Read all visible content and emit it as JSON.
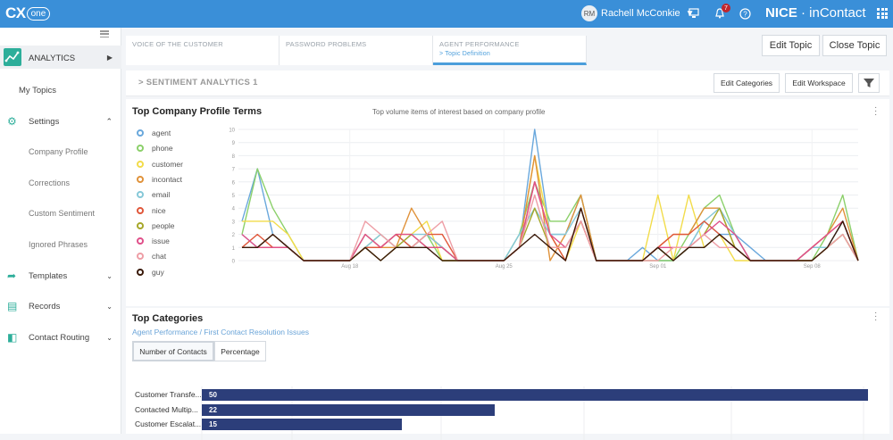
{
  "app": {
    "logo_text": "CX",
    "logo_suffix": "one",
    "brand_bold": "NICE",
    "brand_thin": " · inContact"
  },
  "user": {
    "initials": "RM",
    "name": "Rachell McConkie",
    "notifications": "7"
  },
  "sidebar": {
    "items": [
      {
        "label": "ANALYTICS"
      },
      {
        "label": "My Topics"
      },
      {
        "label": "Settings"
      },
      {
        "label": "Company Profile"
      },
      {
        "label": "Corrections"
      },
      {
        "label": "Custom Sentiment"
      },
      {
        "label": "Ignored Phrases"
      },
      {
        "label": "Templates"
      },
      {
        "label": "Records"
      },
      {
        "label": "Contact Routing"
      }
    ]
  },
  "tabs": [
    {
      "label": "VOICE OF THE CUSTOMER",
      "sub": ""
    },
    {
      "label": "PASSWORD PROBLEMS",
      "sub": ""
    },
    {
      "label": "AGENT PERFORMANCE",
      "sub": "> Topic Definition"
    }
  ],
  "actions": {
    "edit_topic": "Edit Topic",
    "close_topic": "Close Topic",
    "edit_categories": "Edit Categories",
    "edit_workspace": "Edit Workspace"
  },
  "section": {
    "title": "> SENTIMENT ANALYTICS 1"
  },
  "profile_card": {
    "title": "Top Company Profile Terms",
    "subtitle": "Top volume items of interest based on company profile"
  },
  "chart_data": {
    "type": "line",
    "x_tick_labels": [
      "Aug 18",
      "Aug 25",
      "Sep 01",
      "Sep 08"
    ],
    "x_tick_index": [
      7,
      17,
      27,
      37
    ],
    "ylim": [
      0,
      10
    ],
    "y_ticks": [
      0,
      1,
      2,
      3,
      4,
      5,
      6,
      7,
      8,
      9,
      10
    ],
    "grid": true,
    "legend_placement": "left",
    "series": [
      {
        "name": "agent",
        "color": "#6aa8dc",
        "values": [
          3,
          7,
          2,
          1,
          0,
          0,
          0,
          0,
          2,
          1,
          2,
          1,
          2,
          1,
          0,
          0,
          0,
          0,
          1,
          10,
          2,
          2,
          5,
          0,
          0,
          0,
          1,
          0,
          0,
          1,
          3,
          2,
          2,
          1,
          0,
          0,
          0,
          1,
          1,
          3,
          0
        ]
      },
      {
        "name": "phone",
        "color": "#8bd06a",
        "values": [
          2,
          7,
          4,
          2,
          0,
          0,
          0,
          0,
          1,
          2,
          1,
          1,
          2,
          0,
          0,
          0,
          0,
          0,
          2,
          6,
          3,
          3,
          5,
          0,
          0,
          0,
          0,
          0,
          0,
          2,
          4,
          5,
          2,
          0,
          0,
          0,
          0,
          0,
          2,
          5,
          0
        ]
      },
      {
        "name": "customer",
        "color": "#f2dc4a",
        "values": [
          3,
          3,
          3,
          2,
          0,
          0,
          0,
          0,
          2,
          1,
          2,
          2,
          3,
          0,
          0,
          0,
          0,
          0,
          1,
          8,
          2,
          0,
          3,
          0,
          0,
          0,
          0,
          5,
          0,
          5,
          1,
          2,
          0,
          0,
          0,
          0,
          0,
          0,
          1,
          2,
          0
        ]
      },
      {
        "name": "incontact",
        "color": "#e0923a",
        "values": [
          1,
          1,
          1,
          1,
          0,
          0,
          0,
          0,
          1,
          1,
          1,
          4,
          2,
          1,
          0,
          0,
          0,
          0,
          1,
          8,
          0,
          2,
          5,
          0,
          0,
          0,
          0,
          1,
          2,
          2,
          4,
          4,
          1,
          0,
          0,
          0,
          0,
          1,
          2,
          4,
          0
        ]
      },
      {
        "name": "email",
        "color": "#86c8d8",
        "values": [
          2,
          1,
          2,
          1,
          0,
          0,
          0,
          0,
          1,
          2,
          1,
          2,
          2,
          1,
          0,
          0,
          0,
          0,
          2,
          4,
          2,
          2,
          4,
          0,
          0,
          0,
          0,
          1,
          0,
          1,
          3,
          4,
          2,
          0,
          0,
          0,
          0,
          1,
          1,
          2,
          0
        ]
      },
      {
        "name": "nice",
        "color": "#e0573a",
        "values": [
          1,
          2,
          1,
          1,
          0,
          0,
          0,
          0,
          1,
          1,
          2,
          1,
          2,
          2,
          0,
          0,
          0,
          0,
          1,
          6,
          2,
          0,
          4,
          0,
          0,
          0,
          0,
          1,
          2,
          2,
          3,
          2,
          1,
          0,
          0,
          0,
          0,
          1,
          2,
          3,
          0
        ]
      },
      {
        "name": "people",
        "color": "#a7a82a",
        "values": [
          1,
          1,
          2,
          1,
          0,
          0,
          0,
          0,
          1,
          0,
          1,
          2,
          1,
          1,
          0,
          0,
          0,
          0,
          1,
          4,
          1,
          1,
          3,
          0,
          0,
          0,
          0,
          1,
          0,
          1,
          2,
          4,
          1,
          0,
          0,
          0,
          0,
          0,
          1,
          2,
          0
        ]
      },
      {
        "name": "issue",
        "color": "#e0508a",
        "values": [
          2,
          1,
          1,
          1,
          0,
          0,
          0,
          0,
          2,
          1,
          2,
          2,
          1,
          1,
          0,
          0,
          0,
          0,
          1,
          6,
          2,
          1,
          3,
          0,
          0,
          0,
          0,
          1,
          1,
          1,
          2,
          3,
          2,
          0,
          0,
          0,
          0,
          1,
          2,
          3,
          0
        ]
      },
      {
        "name": "chat",
        "color": "#ee9ea6",
        "values": [
          1,
          1,
          2,
          1,
          0,
          0,
          0,
          0,
          3,
          2,
          1,
          1,
          2,
          3,
          0,
          0,
          0,
          0,
          1,
          5,
          1,
          1,
          3,
          0,
          0,
          0,
          0,
          0,
          1,
          1,
          2,
          1,
          1,
          0,
          0,
          0,
          0,
          0,
          1,
          2,
          0
        ]
      },
      {
        "name": "guy",
        "color": "#3a1a0a",
        "values": [
          1,
          1,
          2,
          1,
          0,
          0,
          0,
          0,
          1,
          0,
          1,
          1,
          1,
          0,
          0,
          0,
          0,
          0,
          1,
          2,
          1,
          0,
          4,
          0,
          0,
          0,
          0,
          1,
          0,
          1,
          1,
          2,
          1,
          0,
          0,
          0,
          0,
          0,
          1,
          3,
          0
        ]
      }
    ]
  },
  "categories_card": {
    "title": "Top Categories",
    "breadcrumb": "Agent Performance /  First Contact Resolution Issues",
    "toggle": [
      "Number of Contacts",
      "Percentage"
    ],
    "bars": [
      {
        "label": "Customer Transfe...",
        "value": 50
      },
      {
        "label": "Contacted Multip...",
        "value": 22
      },
      {
        "label": "Customer Escalat...",
        "value": 15
      }
    ]
  }
}
